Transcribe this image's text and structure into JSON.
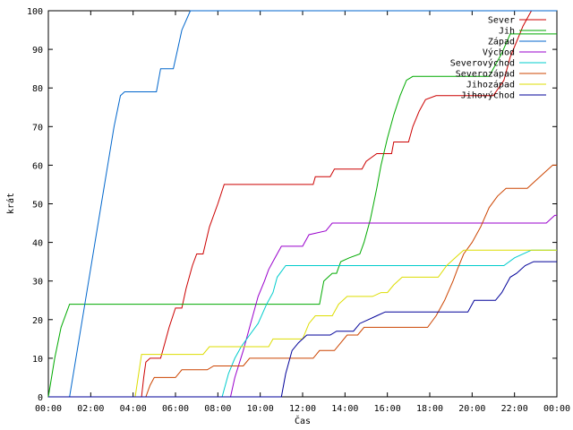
{
  "chart_data": {
    "type": "line",
    "xlabel": "Čas",
    "ylabel": "krát",
    "xlim": [
      0,
      24
    ],
    "ylim": [
      0,
      100
    ],
    "x_ticks": [
      "00:00",
      "02:00",
      "04:00",
      "06:00",
      "08:00",
      "10:00",
      "12:00",
      "14:00",
      "16:00",
      "18:00",
      "20:00",
      "22:00",
      "00:00"
    ],
    "y_ticks": [
      "0",
      "10",
      "20",
      "30",
      "40",
      "50",
      "60",
      "70",
      "80",
      "90",
      "100"
    ],
    "grid": false,
    "legend_position": "top-right",
    "series": [
      {
        "name": "Sever",
        "color": "#cc0000",
        "points": [
          [
            0,
            0
          ],
          [
            4.4,
            0
          ],
          [
            4.5,
            5
          ],
          [
            4.6,
            9
          ],
          [
            4.8,
            10
          ],
          [
            5.3,
            10
          ],
          [
            5.5,
            14
          ],
          [
            5.7,
            18
          ],
          [
            6.0,
            23
          ],
          [
            6.3,
            23
          ],
          [
            6.5,
            28
          ],
          [
            6.8,
            34
          ],
          [
            7.0,
            37
          ],
          [
            7.3,
            37
          ],
          [
            7.6,
            44
          ],
          [
            8.0,
            50
          ],
          [
            8.3,
            55
          ],
          [
            12.5,
            55
          ],
          [
            12.6,
            57
          ],
          [
            13.3,
            57
          ],
          [
            13.5,
            59
          ],
          [
            14.8,
            59
          ],
          [
            15.0,
            61
          ],
          [
            15.5,
            63
          ],
          [
            15.7,
            63
          ],
          [
            16.2,
            63
          ],
          [
            16.3,
            66
          ],
          [
            17.0,
            66
          ],
          [
            17.2,
            70
          ],
          [
            17.5,
            74
          ],
          [
            17.8,
            77
          ],
          [
            18.3,
            78
          ],
          [
            21.0,
            78
          ],
          [
            21.5,
            82
          ],
          [
            21.8,
            88
          ],
          [
            22.1,
            92
          ],
          [
            22.4,
            96
          ],
          [
            22.7,
            99
          ],
          [
            22.8,
            100
          ],
          [
            24,
            100
          ]
        ]
      },
      {
        "name": "Jih",
        "color": "#00aa00",
        "points": [
          [
            0,
            0
          ],
          [
            0.3,
            10
          ],
          [
            0.6,
            18
          ],
          [
            1.0,
            24
          ],
          [
            12.8,
            24
          ],
          [
            13.0,
            30
          ],
          [
            13.4,
            32
          ],
          [
            13.6,
            32
          ],
          [
            13.8,
            35
          ],
          [
            14.2,
            36
          ],
          [
            14.7,
            37
          ],
          [
            14.9,
            40
          ],
          [
            15.2,
            46
          ],
          [
            15.5,
            54
          ],
          [
            15.7,
            60
          ],
          [
            16.0,
            67
          ],
          [
            16.3,
            73
          ],
          [
            16.6,
            78
          ],
          [
            16.9,
            82
          ],
          [
            17.2,
            83
          ],
          [
            20.8,
            83
          ],
          [
            21.4,
            89
          ],
          [
            21.8,
            94
          ],
          [
            24,
            94
          ]
        ]
      },
      {
        "name": "Západ",
        "color": "#0066cc",
        "points": [
          [
            0,
            0
          ],
          [
            1.0,
            0
          ],
          [
            1.3,
            10
          ],
          [
            1.6,
            20
          ],
          [
            1.9,
            30
          ],
          [
            2.2,
            40
          ],
          [
            2.5,
            50
          ],
          [
            2.8,
            60
          ],
          [
            3.1,
            70
          ],
          [
            3.4,
            78
          ],
          [
            3.6,
            79
          ],
          [
            5.1,
            79
          ],
          [
            5.3,
            85
          ],
          [
            5.9,
            85
          ],
          [
            6.1,
            90
          ],
          [
            6.3,
            95
          ],
          [
            6.7,
            100
          ],
          [
            24,
            100
          ]
        ]
      },
      {
        "name": "Východ",
        "color": "#9900cc",
        "points": [
          [
            0,
            0
          ],
          [
            8.6,
            0
          ],
          [
            8.8,
            5
          ],
          [
            9.2,
            12
          ],
          [
            9.5,
            18
          ],
          [
            9.9,
            26
          ],
          [
            10.2,
            30
          ],
          [
            10.4,
            33
          ],
          [
            10.7,
            36
          ],
          [
            11.0,
            39
          ],
          [
            12.0,
            39
          ],
          [
            12.3,
            42
          ],
          [
            13.1,
            43
          ],
          [
            13.4,
            45
          ],
          [
            23.5,
            45
          ],
          [
            23.9,
            47
          ],
          [
            24,
            47
          ]
        ]
      },
      {
        "name": "Severovýchod",
        "color": "#00cccc",
        "points": [
          [
            0,
            0
          ],
          [
            8.2,
            0
          ],
          [
            8.5,
            6
          ],
          [
            8.8,
            10
          ],
          [
            9.1,
            13
          ],
          [
            9.5,
            16
          ],
          [
            9.9,
            19
          ],
          [
            10.3,
            24
          ],
          [
            10.6,
            27
          ],
          [
            10.8,
            31
          ],
          [
            11.2,
            34
          ],
          [
            21.5,
            34
          ],
          [
            22.0,
            36
          ],
          [
            22.8,
            38
          ],
          [
            24,
            38
          ]
        ]
      },
      {
        "name": "Severozápad",
        "color": "#cc4400",
        "points": [
          [
            0,
            0
          ],
          [
            4.6,
            0
          ],
          [
            4.8,
            3
          ],
          [
            5.0,
            5
          ],
          [
            6.0,
            5
          ],
          [
            6.3,
            7
          ],
          [
            7.5,
            7
          ],
          [
            7.8,
            8
          ],
          [
            9.2,
            8
          ],
          [
            9.5,
            10
          ],
          [
            12.5,
            10
          ],
          [
            12.8,
            12
          ],
          [
            13.5,
            12
          ],
          [
            13.8,
            14
          ],
          [
            14.1,
            16
          ],
          [
            14.6,
            16
          ],
          [
            14.9,
            18
          ],
          [
            17.9,
            18
          ],
          [
            18.3,
            21
          ],
          [
            18.7,
            25
          ],
          [
            19.1,
            30
          ],
          [
            19.3,
            33
          ],
          [
            19.6,
            37
          ],
          [
            20.0,
            40
          ],
          [
            20.4,
            44
          ],
          [
            20.8,
            49
          ],
          [
            21.2,
            52
          ],
          [
            21.6,
            54
          ],
          [
            22.6,
            54
          ],
          [
            23.0,
            56
          ],
          [
            23.4,
            58
          ],
          [
            23.8,
            60
          ],
          [
            24,
            60
          ]
        ]
      },
      {
        "name": "Jihozápad",
        "color": "#dddd00",
        "points": [
          [
            0,
            0
          ],
          [
            4.1,
            0
          ],
          [
            4.4,
            11
          ],
          [
            7.3,
            11
          ],
          [
            7.6,
            13
          ],
          [
            10.4,
            13
          ],
          [
            10.6,
            15
          ],
          [
            12.0,
            15
          ],
          [
            12.3,
            19
          ],
          [
            12.6,
            21
          ],
          [
            13.4,
            21
          ],
          [
            13.7,
            24
          ],
          [
            14.1,
            26
          ],
          [
            15.3,
            26
          ],
          [
            15.7,
            27
          ],
          [
            16.0,
            27
          ],
          [
            16.3,
            29
          ],
          [
            16.7,
            31
          ],
          [
            18.4,
            31
          ],
          [
            18.8,
            34
          ],
          [
            19.2,
            36
          ],
          [
            19.6,
            38
          ],
          [
            24,
            38
          ]
        ]
      },
      {
        "name": "Jihovýchod",
        "color": "#000099",
        "points": [
          [
            0,
            0
          ],
          [
            11.0,
            0
          ],
          [
            11.2,
            6
          ],
          [
            11.5,
            12
          ],
          [
            11.8,
            14
          ],
          [
            12.2,
            16
          ],
          [
            13.3,
            16
          ],
          [
            13.6,
            17
          ],
          [
            14.4,
            17
          ],
          [
            14.7,
            19
          ],
          [
            15.1,
            20
          ],
          [
            15.5,
            21
          ],
          [
            15.9,
            22
          ],
          [
            19.8,
            22
          ],
          [
            20.1,
            25
          ],
          [
            21.1,
            25
          ],
          [
            21.4,
            27
          ],
          [
            21.8,
            31
          ],
          [
            22.1,
            32
          ],
          [
            22.5,
            34
          ],
          [
            22.9,
            35
          ],
          [
            24,
            35
          ]
        ]
      }
    ]
  }
}
